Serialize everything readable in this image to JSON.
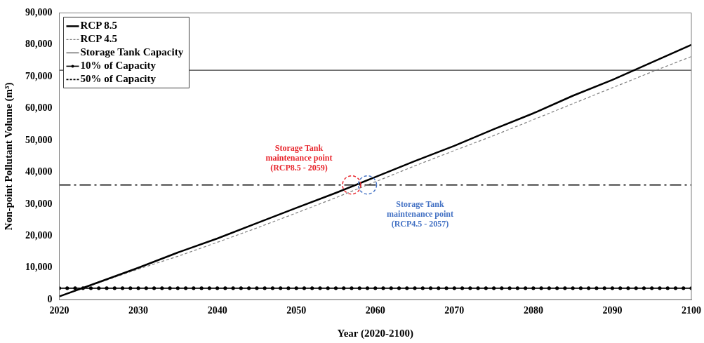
{
  "chart_data": {
    "type": "line",
    "xlabel": "Year (2020-2100)",
    "ylabel": "Non-point Pollutant Volume (m³)",
    "xlim": [
      2020,
      2100
    ],
    "ylim": [
      0,
      90000
    ],
    "xticks": [
      2020,
      2030,
      2040,
      2050,
      2060,
      2070,
      2080,
      2090,
      2100
    ],
    "yticks": [
      {
        "value": 0,
        "label": "0"
      },
      {
        "value": 10000,
        "label": "10,000"
      },
      {
        "value": 20000,
        "label": "20,000"
      },
      {
        "value": 30000,
        "label": "30,000"
      },
      {
        "value": 40000,
        "label": "40,000"
      },
      {
        "value": 50000,
        "label": "50,000"
      },
      {
        "value": 60000,
        "label": "60,000"
      },
      {
        "value": 70000,
        "label": "70,000"
      },
      {
        "value": 80000,
        "label": "80,000"
      },
      {
        "value": 90000,
        "label": "90,000"
      }
    ],
    "grid": false,
    "legend": "top left",
    "marker": "none",
    "x": [
      2020,
      2025,
      2030,
      2035,
      2040,
      2045,
      2050,
      2055,
      2060,
      2065,
      2070,
      2075,
      2080,
      2085,
      2090,
      2095,
      2100
    ],
    "series": [
      {
        "name": "RCP 8.5",
        "color": "#000000",
        "line_style": "solid",
        "values": [
          1000,
          5500,
          10000,
          14800,
          19200,
          24000,
          28800,
          33500,
          38500,
          43500,
          48300,
          53500,
          58500,
          64000,
          69000,
          74500,
          80000
        ]
      },
      {
        "name": "RCP 4.5",
        "color": "#808080",
        "line_style": "dashed",
        "values": [
          1000,
          5300,
          9600,
          13600,
          18000,
          22500,
          27200,
          32000,
          37000,
          42000,
          46800,
          51500,
          56500,
          61500,
          66500,
          71500,
          76300
        ]
      },
      {
        "name": "Storage Tank Capacity",
        "color": "#404040",
        "line_style": "solid",
        "x": [
          2020,
          2100
        ],
        "values": [
          72000,
          72000
        ]
      },
      {
        "name": "10% of Capacity",
        "color": "#000000",
        "line_style": "solid",
        "marker": "circle",
        "x": [
          2020,
          2021,
          2022,
          2023,
          2024,
          2025,
          2026,
          2027,
          2028,
          2029,
          2030,
          2031,
          2032,
          2033,
          2034,
          2035,
          2036,
          2037,
          2038,
          2039,
          2040,
          2041,
          2042,
          2043,
          2044,
          2045,
          2046,
          2047,
          2048,
          2049,
          2050,
          2051,
          2052,
          2053,
          2054,
          2055,
          2056,
          2057,
          2058,
          2059,
          2060,
          2061,
          2062,
          2063,
          2064,
          2065,
          2066,
          2067,
          2068,
          2069,
          2070,
          2071,
          2072,
          2073,
          2074,
          2075,
          2076,
          2077,
          2078,
          2079,
          2080,
          2081,
          2082,
          2083,
          2084,
          2085,
          2086,
          2087,
          2088,
          2089,
          2090,
          2091,
          2092,
          2093,
          2094,
          2095,
          2096,
          2097,
          2098,
          2099,
          2100
        ],
        "values": [
          3600,
          3600,
          3600,
          3600,
          3600,
          3600,
          3600,
          3600,
          3600,
          3600,
          3600,
          3600,
          3600,
          3600,
          3600,
          3600,
          3600,
          3600,
          3600,
          3600,
          3600,
          3600,
          3600,
          3600,
          3600,
          3600,
          3600,
          3600,
          3600,
          3600,
          3600,
          3600,
          3600,
          3600,
          3600,
          3600,
          3600,
          3600,
          3600,
          3600,
          3600,
          3600,
          3600,
          3600,
          3600,
          3600,
          3600,
          3600,
          3600,
          3600,
          3600,
          3600,
          3600,
          3600,
          3600,
          3600,
          3600,
          3600,
          3600,
          3600,
          3600,
          3600,
          3600,
          3600,
          3600,
          3600,
          3600,
          3600,
          3600,
          3600,
          3600,
          3600,
          3600,
          3600,
          3600,
          3600,
          3600,
          3600,
          3600,
          3600,
          3600
        ]
      },
      {
        "name": "50% of Capacity",
        "color": "#000000",
        "line_style": "dashed",
        "x": [
          2020,
          2100
        ],
        "values": [
          36000,
          36000
        ]
      }
    ],
    "annotations": [
      {
        "text": "Storage Tank\nmaintenance point\n(RCP8.5 - 2059)",
        "x": 2057,
        "y": 36000
      },
      {
        "text": "Storage Tank\nmaintenance point\n(RCP4.5 - 2057)",
        "x": 2059,
        "y": 36000
      }
    ]
  }
}
